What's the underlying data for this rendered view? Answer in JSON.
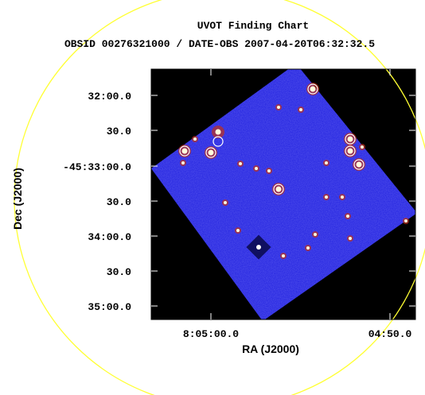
{
  "header": {
    "title": "UVOT Finding Chart",
    "subtitle": "OBSID 00276321000 / DATE-OBS 2007-04-20T06:32:32.5"
  },
  "x_axis": {
    "label": "RA (J2000)",
    "ticks": [
      "8:05:00.0",
      "04:50.0"
    ]
  },
  "y_axis": {
    "label": "Dec (J2000)",
    "ticks": [
      "32:00.0",
      "30.0",
      "-45:33:00.0",
      "30.0",
      "34:00.0",
      "30.0",
      "35:00.0"
    ]
  }
}
